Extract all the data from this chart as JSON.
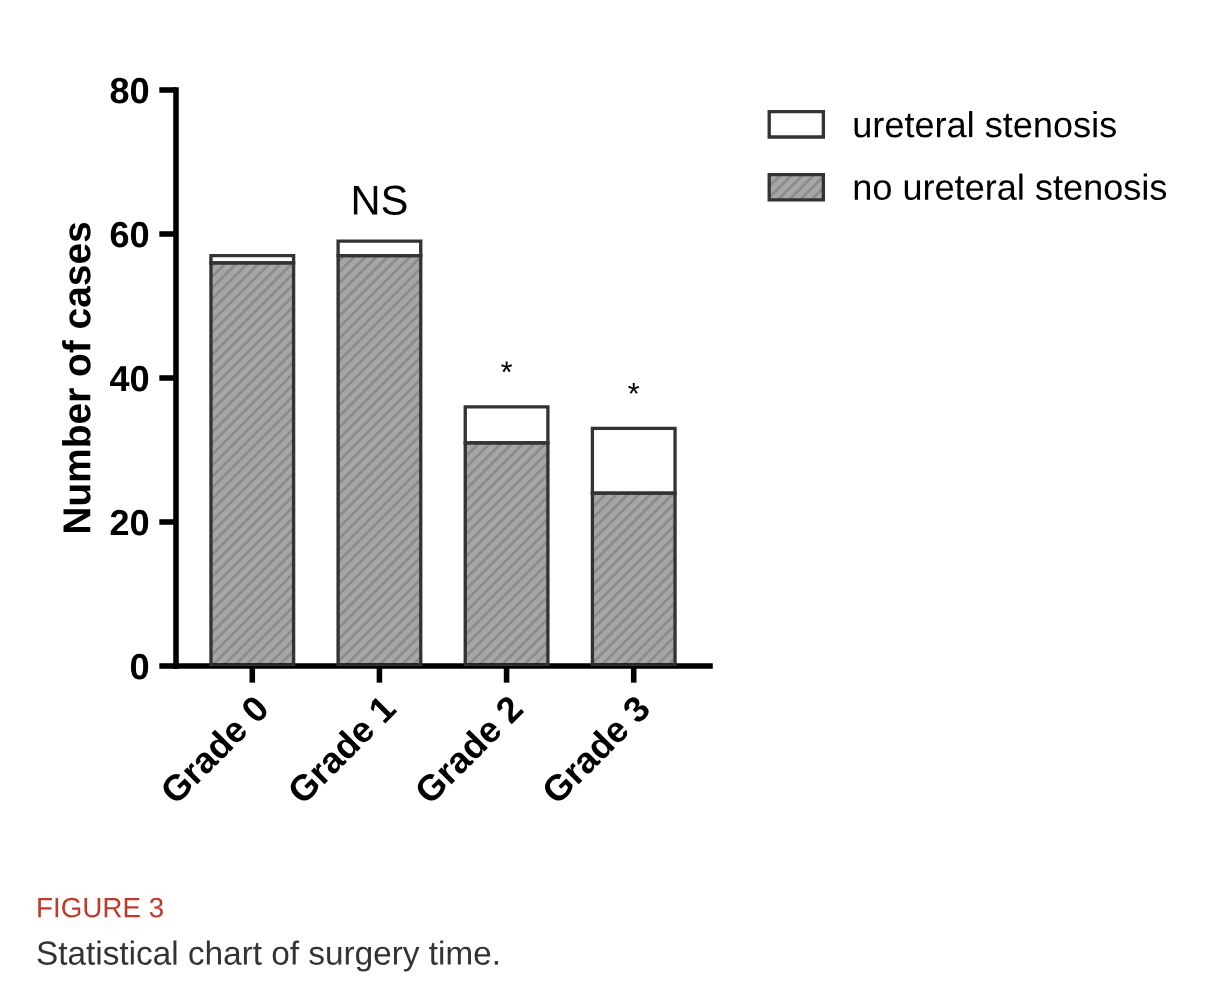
{
  "chart_data": {
    "type": "bar",
    "stacked": true,
    "ylabel": "Number of cases",
    "categories": [
      "Grade 0",
      "Grade 1",
      "Grade 2",
      "Grade 3"
    ],
    "series": [
      {
        "name": "no ureteral stenosis",
        "color": "#a6a6a6",
        "values": [
          56,
          57,
          31,
          24
        ]
      },
      {
        "name": "ureteral stenosis",
        "color": "#ffffff",
        "values": [
          1,
          2,
          5,
          9
        ]
      }
    ],
    "ylim": [
      0,
      80
    ],
    "yticks": [
      0,
      20,
      40,
      60,
      80
    ],
    "grid": false,
    "legend": "top right",
    "annotations": [
      "NS",
      "*",
      "*",
      "FIGURE 3",
      "Statistical chart of surgery time."
    ]
  }
}
